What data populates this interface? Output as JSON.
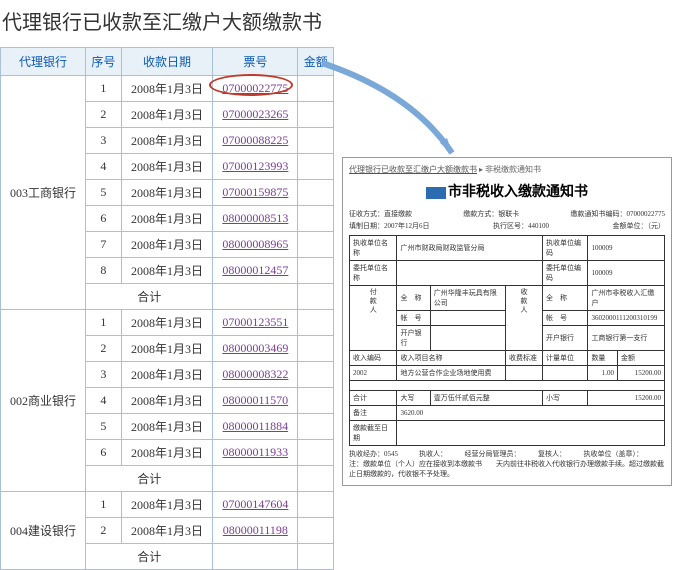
{
  "title": "代理银行已收款至汇缴户大额缴款书",
  "table": {
    "headers": [
      "代理银行",
      "序号",
      "收款日期",
      "票号",
      "金额"
    ],
    "groups": [
      {
        "bank": "003工商银行",
        "rows": [
          {
            "no": "1",
            "date": "2008年1月3日",
            "ticket": "07000022775",
            "circled": true
          },
          {
            "no": "2",
            "date": "2008年1月3日",
            "ticket": "07000023265"
          },
          {
            "no": "3",
            "date": "2008年1月3日",
            "ticket": "07000088225"
          },
          {
            "no": "4",
            "date": "2008年1月3日",
            "ticket": "07000123993"
          },
          {
            "no": "5",
            "date": "2008年1月3日",
            "ticket": "07000159875"
          },
          {
            "no": "6",
            "date": "2008年1月3日",
            "ticket": "08000008513"
          },
          {
            "no": "7",
            "date": "2008年1月3日",
            "ticket": "08000008965"
          },
          {
            "no": "8",
            "date": "2008年1月3日",
            "ticket": "08000012457"
          }
        ],
        "subtotal": "合计"
      },
      {
        "bank": "002商业银行",
        "rows": [
          {
            "no": "1",
            "date": "2008年1月3日",
            "ticket": "07000123551"
          },
          {
            "no": "2",
            "date": "2008年1月3日",
            "ticket": "08000003469"
          },
          {
            "no": "3",
            "date": "2008年1月3日",
            "ticket": "08000008322"
          },
          {
            "no": "4",
            "date": "2008年1月3日",
            "ticket": "08000011570"
          },
          {
            "no": "5",
            "date": "2008年1月3日",
            "ticket": "08000011884"
          },
          {
            "no": "6",
            "date": "2008年1月3日",
            "ticket": "08000011933"
          }
        ],
        "subtotal": "合计"
      },
      {
        "bank": "004建设银行",
        "rows": [
          {
            "no": "1",
            "date": "2008年1月3日",
            "ticket": "07000147604"
          },
          {
            "no": "2",
            "date": "2008年1月3日",
            "ticket": "08000011198"
          }
        ],
        "subtotal": "合计"
      }
    ]
  },
  "doc": {
    "crumb1": "代理银行已收款至汇缴户大额缴款书",
    "crumb2": "非税缴款通知书",
    "doctitle_suffix": "市非税收入缴款通知书",
    "meta1": {
      "a": "征收方式：直接缴款",
      "b": "缴款方式：银联卡",
      "c": "缴款通知书编码：07000022775"
    },
    "meta2": {
      "a": "填制日期：2007年12月6日",
      "b": "执行区号：440100",
      "c": "金额单位：（元）"
    },
    "form": {
      "r1a": "执收单位名称",
      "r1b": "广州市财政局财政监管分局",
      "r1c": "执收单位编码",
      "r1d": "100009",
      "r2a": "委托单位名称",
      "r2b": "",
      "r2c": "委托单位编码",
      "r2d": "100009",
      "payer_label": "付款人",
      "payer_full": "全　称",
      "payer_full_v": "广州华隆丰玩具有限公司",
      "payee_label": "收款人",
      "payee_full": "全　称",
      "payee_full_v": "广州市非税收入汇缴户",
      "acct": "帐　号",
      "acct_v": "",
      "acct2_v": "3602000111200310199",
      "bank": "开户银行",
      "bank_v": "",
      "bank2_v": "工商银行第一支行",
      "hdr_code": "收入编码",
      "hdr_name": "收入项目名称",
      "hdr_std": "收费标准",
      "hdr_unit": "计量单位",
      "hdr_qty": "数量",
      "hdr_amt": "金额",
      "row_code": "2002",
      "row_name": "地方公营合作企业场地使用费",
      "row_qty": "1.00",
      "row_amt": "15200.00",
      "total": "合计",
      "caps": "大写",
      "caps_v": "壹万伍仟贰佰元整",
      "small": "小写",
      "small_v": "15200.00",
      "note": "备注",
      "note_v": "3620.00",
      "deadline": "缴款截至日期"
    },
    "footer1": "执收经办：0545　　　执收人：　　　经营分局管理员：　　　复核人：　　　执收单位（盖章）：",
    "footer2": "注：缴款单位（个人）应在接收到本缴款书　　天内前往非税收入代收银行办理缴款手续。超过缴款截止日期缴款的，代收银不予处理。"
  }
}
